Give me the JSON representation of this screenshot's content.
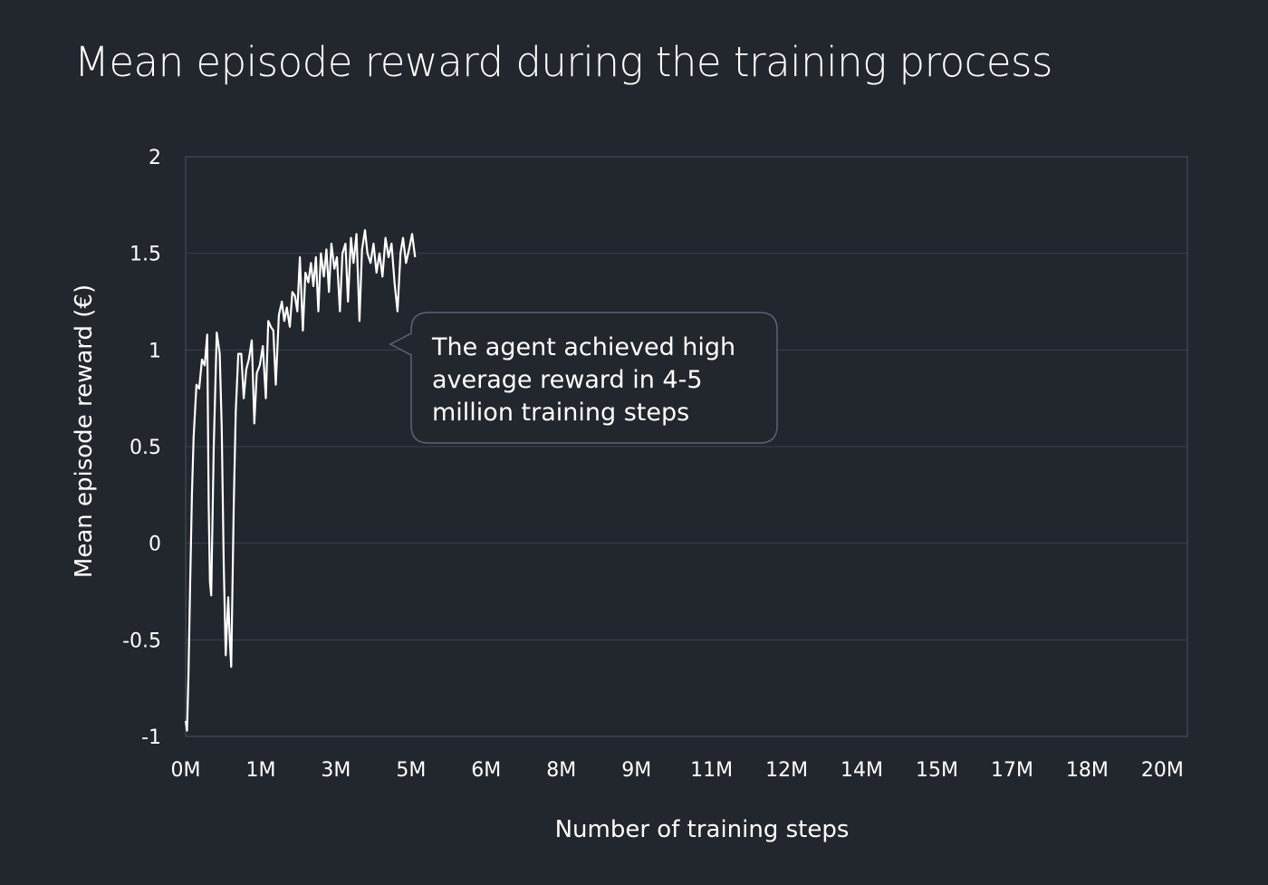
{
  "colors": {
    "background": "#22272e",
    "gridline": "#3b424c",
    "plot_border": "#4a525c",
    "series": "#ffffff",
    "text": "#ffffff",
    "callout_fill": "#22272e",
    "callout_border": "#5b6470"
  },
  "chart_data": {
    "type": "line",
    "title": "Mean episode reward during the training process",
    "xlabel": "Number of training steps",
    "ylabel": "Mean episode reward (€)",
    "xlim": [
      0,
      20000000
    ],
    "ylim": [
      -1,
      2
    ],
    "grid": true,
    "legend": "none",
    "y_ticks": [
      {
        "value": 2,
        "label": "2"
      },
      {
        "value": 1.5,
        "label": "1.5"
      },
      {
        "value": 1,
        "label": "1"
      },
      {
        "value": 0.5,
        "label": "0.5"
      },
      {
        "value": 0,
        "label": "0"
      },
      {
        "value": -0.5,
        "label": "-0.5"
      },
      {
        "value": -1,
        "label": "-1"
      }
    ],
    "x_ticks": [
      {
        "value": 0,
        "label": "0M"
      },
      {
        "value": 1500000,
        "label": "1M"
      },
      {
        "value": 3000000,
        "label": "3M"
      },
      {
        "value": 4500000,
        "label": "5M"
      },
      {
        "value": 6000000,
        "label": "6M"
      },
      {
        "value": 7500000,
        "label": "8M"
      },
      {
        "value": 9000000,
        "label": "9M"
      },
      {
        "value": 10500000,
        "label": "11M"
      },
      {
        "value": 12000000,
        "label": "12M"
      },
      {
        "value": 13500000,
        "label": "14M"
      },
      {
        "value": 15000000,
        "label": "15M"
      },
      {
        "value": 16500000,
        "label": "17M"
      },
      {
        "value": 18000000,
        "label": "18M"
      },
      {
        "value": 19500000,
        "label": "20M"
      }
    ],
    "series": [
      {
        "values": [
          [
            0,
            -0.92
          ],
          [
            27000,
            -0.97
          ],
          [
            55000,
            -0.7
          ],
          [
            90000,
            -0.2
          ],
          [
            125000,
            0.25
          ],
          [
            160000,
            0.55
          ],
          [
            215000,
            0.82
          ],
          [
            270000,
            0.8
          ],
          [
            325000,
            0.95
          ],
          [
            380000,
            0.92
          ],
          [
            430000,
            1.08
          ],
          [
            460000,
            0.2
          ],
          [
            485000,
            -0.2
          ],
          [
            510000,
            -0.27
          ],
          [
            560000,
            0.5
          ],
          [
            620000,
            1.09
          ],
          [
            680000,
            0.98
          ],
          [
            720000,
            0.6
          ],
          [
            760000,
            -0.1
          ],
          [
            800000,
            -0.58
          ],
          [
            850000,
            -0.28
          ],
          [
            880000,
            -0.5
          ],
          [
            910000,
            -0.64
          ],
          [
            960000,
            0.2
          ],
          [
            1000000,
            0.68
          ],
          [
            1050000,
            0.98
          ],
          [
            1110000,
            0.98
          ],
          [
            1160000,
            0.75
          ],
          [
            1210000,
            0.9
          ],
          [
            1260000,
            0.95
          ],
          [
            1320000,
            1.05
          ],
          [
            1370000,
            0.62
          ],
          [
            1420000,
            0.88
          ],
          [
            1480000,
            0.92
          ],
          [
            1540000,
            1.02
          ],
          [
            1600000,
            0.75
          ],
          [
            1650000,
            1.15
          ],
          [
            1700000,
            1.12
          ],
          [
            1750000,
            1.1
          ],
          [
            1800000,
            0.82
          ],
          [
            1860000,
            1.18
          ],
          [
            1920000,
            1.25
          ],
          [
            1970000,
            1.15
          ],
          [
            2020000,
            1.22
          ],
          [
            2080000,
            1.12
          ],
          [
            2130000,
            1.3
          ],
          [
            2180000,
            1.28
          ],
          [
            2230000,
            1.2
          ],
          [
            2280000,
            1.48
          ],
          [
            2340000,
            1.1
          ],
          [
            2390000,
            1.4
          ],
          [
            2450000,
            1.35
          ],
          [
            2500000,
            1.45
          ],
          [
            2550000,
            1.33
          ],
          [
            2600000,
            1.48
          ],
          [
            2650000,
            1.2
          ],
          [
            2700000,
            1.5
          ],
          [
            2760000,
            1.38
          ],
          [
            2810000,
            1.52
          ],
          [
            2860000,
            1.3
          ],
          [
            2910000,
            1.55
          ],
          [
            2970000,
            1.42
          ],
          [
            3020000,
            1.48
          ],
          [
            3080000,
            1.2
          ],
          [
            3130000,
            1.5
          ],
          [
            3190000,
            1.55
          ],
          [
            3240000,
            1.25
          ],
          [
            3300000,
            1.58
          ],
          [
            3350000,
            1.45
          ],
          [
            3410000,
            1.6
          ],
          [
            3470000,
            1.15
          ],
          [
            3520000,
            1.52
          ],
          [
            3580000,
            1.62
          ],
          [
            3630000,
            1.5
          ],
          [
            3690000,
            1.45
          ],
          [
            3750000,
            1.55
          ],
          [
            3810000,
            1.4
          ],
          [
            3870000,
            1.5
          ],
          [
            3930000,
            1.38
          ],
          [
            3990000,
            1.58
          ],
          [
            4050000,
            1.48
          ],
          [
            4110000,
            1.55
          ],
          [
            4170000,
            1.35
          ],
          [
            4230000,
            1.2
          ],
          [
            4290000,
            1.5
          ],
          [
            4340000,
            1.58
          ],
          [
            4400000,
            1.45
          ],
          [
            4460000,
            1.52
          ],
          [
            4520000,
            1.6
          ],
          [
            4580000,
            1.48
          ]
        ]
      }
    ],
    "annotations": [
      {
        "text": "The agent achieved high average reward in 4-5 million training steps",
        "lines": [
          "The agent achieved high",
          "average reward in 4-5",
          "million training steps"
        ]
      }
    ]
  }
}
